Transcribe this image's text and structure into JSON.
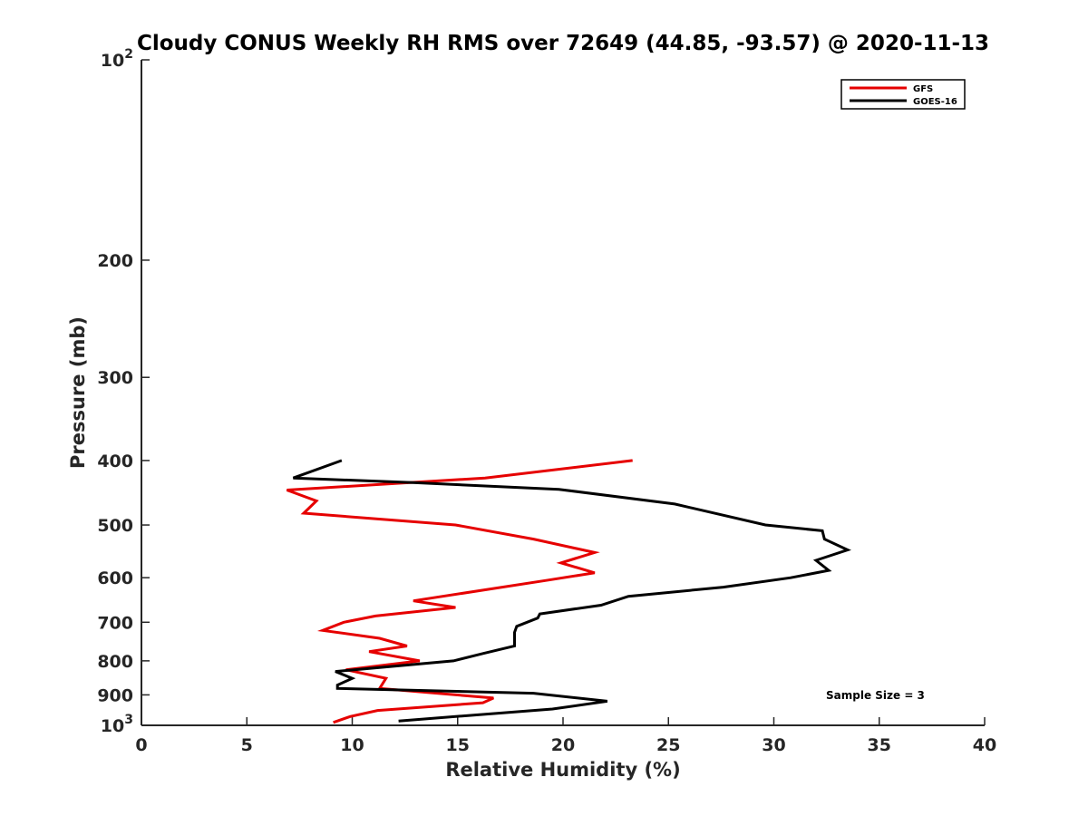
{
  "chart_data": {
    "type": "line",
    "title": "Cloudy CONUS Weekly RH RMS over 72649 (44.85, -93.57) @ 2020-11-13",
    "xlabel": "Relative Humidity (%)",
    "ylabel": "Pressure (mb)",
    "xlim": [
      0,
      40
    ],
    "ylim": [
      100,
      1000
    ],
    "y_scale": "log",
    "y_reversed": true,
    "grid": false,
    "legend_position": "top-right",
    "x_ticks": [
      "0",
      "5",
      "10",
      "15",
      "20",
      "25",
      "30",
      "35",
      "40"
    ],
    "y_ticks": [
      {
        "value": 100,
        "base": "10",
        "exp": "2"
      },
      {
        "value": 200,
        "label": "200"
      },
      {
        "value": 300,
        "label": "300"
      },
      {
        "value": 400,
        "label": "400"
      },
      {
        "value": 500,
        "label": "500"
      },
      {
        "value": 600,
        "label": "600"
      },
      {
        "value": 700,
        "label": "700"
      },
      {
        "value": 800,
        "label": "800"
      },
      {
        "value": 900,
        "label": "900"
      },
      {
        "value": 1000,
        "base": "10",
        "exp": "3"
      }
    ],
    "annotation": "Sample Size = 3",
    "series": [
      {
        "name": "GFS",
        "color": "#e60000",
        "points": [
          [
            23.3,
            400
          ],
          [
            16.3,
            425
          ],
          [
            6.9,
            443
          ],
          [
            8.3,
            460
          ],
          [
            7.7,
            480
          ],
          [
            14.9,
            500
          ],
          [
            18.6,
            525
          ],
          [
            21.5,
            550
          ],
          [
            19.9,
            570
          ],
          [
            21.5,
            590
          ],
          [
            19.3,
            605
          ],
          [
            12.9,
            650
          ],
          [
            14.9,
            665
          ],
          [
            11.1,
            685
          ],
          [
            9.6,
            700
          ],
          [
            8.6,
            720
          ],
          [
            11.3,
            740
          ],
          [
            12.6,
            760
          ],
          [
            10.8,
            775
          ],
          [
            13.2,
            800
          ],
          [
            9.7,
            825
          ],
          [
            11.6,
            850
          ],
          [
            11.3,
            880
          ],
          [
            16.7,
            910
          ],
          [
            16.2,
            925
          ],
          [
            11.2,
            950
          ],
          [
            9.9,
            970
          ],
          [
            9.1,
            990
          ]
        ]
      },
      {
        "name": "GOES-16",
        "color": "#000000",
        "points": [
          [
            9.5,
            400
          ],
          [
            7.2,
            425
          ],
          [
            13.0,
            432
          ],
          [
            19.8,
            442
          ],
          [
            25.3,
            465
          ],
          [
            29.6,
            500
          ],
          [
            32.3,
            510
          ],
          [
            32.4,
            525
          ],
          [
            33.5,
            545
          ],
          [
            32.0,
            565
          ],
          [
            32.6,
            585
          ],
          [
            30.8,
            600
          ],
          [
            27.6,
            620
          ],
          [
            23.1,
            640
          ],
          [
            21.8,
            660
          ],
          [
            18.9,
            680
          ],
          [
            18.8,
            690
          ],
          [
            17.8,
            710
          ],
          [
            17.7,
            725
          ],
          [
            17.7,
            760
          ],
          [
            16.2,
            780
          ],
          [
            14.8,
            800
          ],
          [
            10.1,
            825
          ],
          [
            9.2,
            830
          ],
          [
            10.0,
            850
          ],
          [
            9.3,
            870
          ],
          [
            9.3,
            880
          ],
          [
            18.6,
            895
          ],
          [
            22.1,
            920
          ],
          [
            19.5,
            945
          ],
          [
            12.2,
            985
          ]
        ]
      }
    ]
  }
}
